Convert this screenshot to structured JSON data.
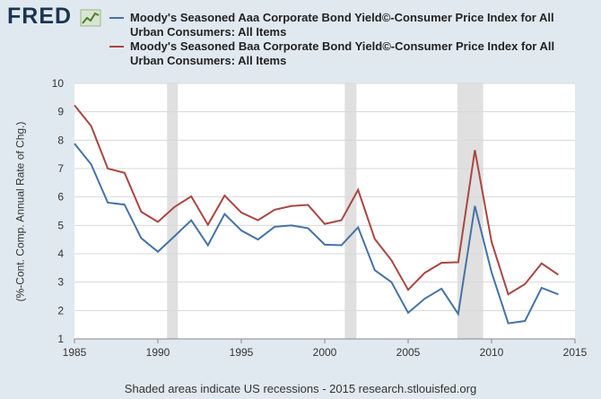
{
  "logo": "FRED",
  "chart_data": {
    "type": "line",
    "y_label": "(%-Cont. Comp. Annual Rate of Chg.)",
    "note": "Shaded areas indicate US recessions - 2015 research.stlouisfed.org",
    "x": [
      1985,
      1986,
      1987,
      1988,
      1989,
      1990,
      1991,
      1992,
      1993,
      1994,
      1995,
      1996,
      1997,
      1998,
      1999,
      2000,
      2001,
      2002,
      2003,
      2004,
      2005,
      2006,
      2007,
      2008,
      2009,
      2010,
      2011,
      2012,
      2013,
      2014
    ],
    "series": [
      {
        "name": "Moody's Seasoned Aaa Corporate Bond Yield©-Consumer Price Index for All Urban Consumers: All Items",
        "color": "#4572a7",
        "values": [
          7.88,
          7.15,
          5.8,
          5.73,
          4.55,
          4.07,
          4.62,
          5.18,
          4.3,
          5.4,
          4.82,
          4.5,
          4.95,
          5.0,
          4.9,
          4.32,
          4.3,
          4.93,
          3.42,
          3.0,
          1.92,
          2.42,
          2.77,
          1.88,
          5.68,
          3.35,
          1.55,
          1.63,
          2.8,
          2.57
        ]
      },
      {
        "name": "Moody's Seasoned Baa Corporate Bond Yield©-Consumer Price Index for All Urban Consumers: All Items",
        "color": "#aa4643",
        "values": [
          9.23,
          8.5,
          7.0,
          6.85,
          5.48,
          5.12,
          5.65,
          6.02,
          5.02,
          6.05,
          5.45,
          5.18,
          5.55,
          5.68,
          5.72,
          5.05,
          5.18,
          6.25,
          4.52,
          3.77,
          2.73,
          3.33,
          3.68,
          3.7,
          7.65,
          4.42,
          2.57,
          2.93,
          3.66,
          3.26
        ]
      }
    ],
    "recessions": [
      [
        1990.55,
        1991.2
      ],
      [
        2001.2,
        2001.9
      ],
      [
        2007.95,
        2009.5
      ]
    ],
    "recession_color": "#e0e0e0",
    "xlim": [
      1985,
      2015
    ],
    "xticks": [
      1985,
      1990,
      1995,
      2000,
      2005,
      2010,
      2015
    ],
    "ylim": [
      1,
      10
    ],
    "yticks": [
      1,
      2,
      3,
      4,
      5,
      6,
      7,
      8,
      9,
      10
    ],
    "grid": true
  }
}
